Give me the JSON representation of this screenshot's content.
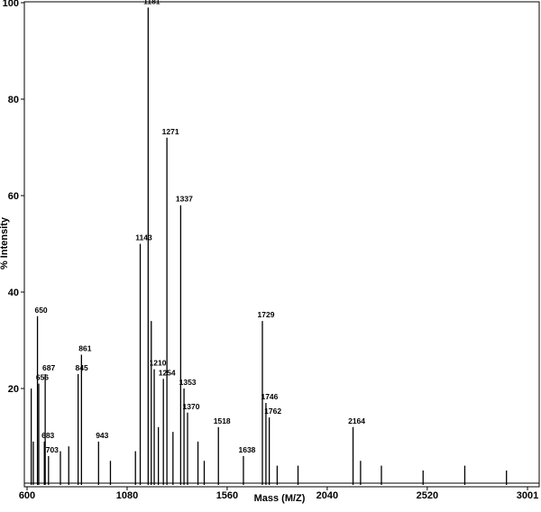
{
  "chart_data": {
    "type": "spectrum",
    "x_label": "Mass (M/Z)",
    "y_label": "% Intensity",
    "xlim": [
      587,
      3057
    ],
    "ylim": [
      0,
      100
    ],
    "xticks": [
      600,
      1080,
      1560,
      2040,
      2520,
      3001
    ],
    "yticks": [
      20,
      40,
      60,
      80,
      100
    ],
    "series": [
      {
        "color": "#000000",
        "labeled": true,
        "x": [
          650,
          656,
          683,
          687,
          703,
          845,
          861,
          943,
          1143,
          1181,
          1210,
          1254,
          1271,
          1337,
          1353,
          1370,
          1518,
          1638,
          1729,
          1746,
          1762,
          2164
        ],
        "values": [
          35,
          21,
          9,
          23,
          6,
          23,
          27,
          9,
          50,
          99,
          24,
          22,
          72,
          58,
          20,
          15,
          12,
          6,
          34,
          17,
          14,
          12
        ]
      },
      {
        "color": "#000000",
        "labeled": false,
        "x": [
          620,
          630,
          760,
          800,
          1000,
          1120,
          1196,
          1230,
          1300,
          1420,
          1450,
          1800,
          1900,
          2200,
          2300,
          2500,
          2700,
          2900
        ],
        "values": [
          20,
          9,
          7,
          8,
          5,
          7,
          34,
          12,
          11,
          9,
          5,
          4,
          4,
          5,
          4,
          3,
          4,
          3
        ]
      }
    ]
  }
}
